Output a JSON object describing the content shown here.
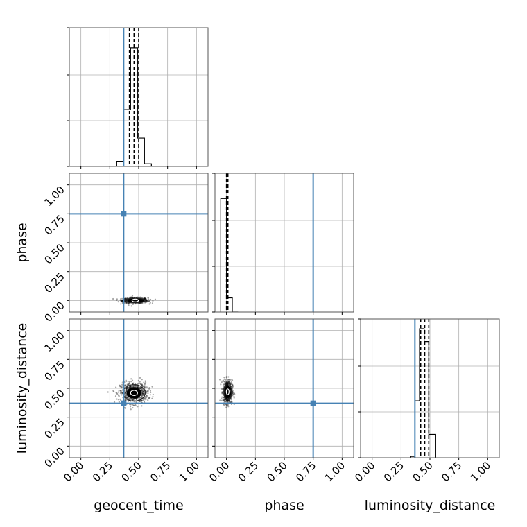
{
  "chart_data": {
    "type": "corner",
    "parameters": [
      "geocent_time",
      "phase",
      "luminosity_distance"
    ],
    "axis_labels": {
      "geocent_time": "geocent_time",
      "phase": "phase",
      "luminosity_distance": "luminosity_distance"
    },
    "axis_range": [
      -0.1,
      1.1
    ],
    "ticks": [
      0.0,
      0.25,
      0.5,
      0.75,
      1.0
    ],
    "tick_labels": [
      "0.00",
      "0.25",
      "0.50",
      "0.75",
      "1.00"
    ],
    "grid": true,
    "truths": {
      "geocent_time": 0.37,
      "phase": 0.75,
      "luminosity_distance": 0.37,
      "color": "#4682b4"
    },
    "quantiles": {
      "geocent_time": [
        0.42,
        0.46,
        0.5
      ],
      "phase": [
        0.0,
        0.005,
        0.012
      ],
      "luminosity_distance": [
        0.42,
        0.455,
        0.49
      ]
    },
    "histograms": {
      "geocent_time": {
        "bin_edges": [
          0.31,
          0.37,
          0.43,
          0.49,
          0.55,
          0.61
        ],
        "counts": [
          0.04,
          0.44,
          0.92,
          0.22,
          0.02
        ]
      },
      "phase": {
        "bin_edges": [
          -0.05,
          0.0,
          0.05,
          0.1
        ],
        "counts": [
          0.88,
          0.11,
          0.0
        ]
      },
      "luminosity_distance": {
        "bin_edges": [
          0.33,
          0.37,
          0.41,
          0.45,
          0.49,
          0.55
        ],
        "counts": [
          0.01,
          0.44,
          1.0,
          0.9,
          0.18
        ]
      }
    },
    "scatter_2d": [
      {
        "x_param": "geocent_time",
        "y_param": "phase",
        "center": [
          0.47,
          0.0
        ],
        "spread": [
          0.055,
          0.012
        ]
      },
      {
        "x_param": "geocent_time",
        "y_param": "luminosity_distance",
        "center": [
          0.46,
          0.46
        ],
        "spread": [
          0.06,
          0.045
        ]
      },
      {
        "x_param": "phase",
        "y_param": "luminosity_distance",
        "center": [
          0.01,
          0.47
        ],
        "spread": [
          0.02,
          0.05
        ]
      }
    ]
  }
}
